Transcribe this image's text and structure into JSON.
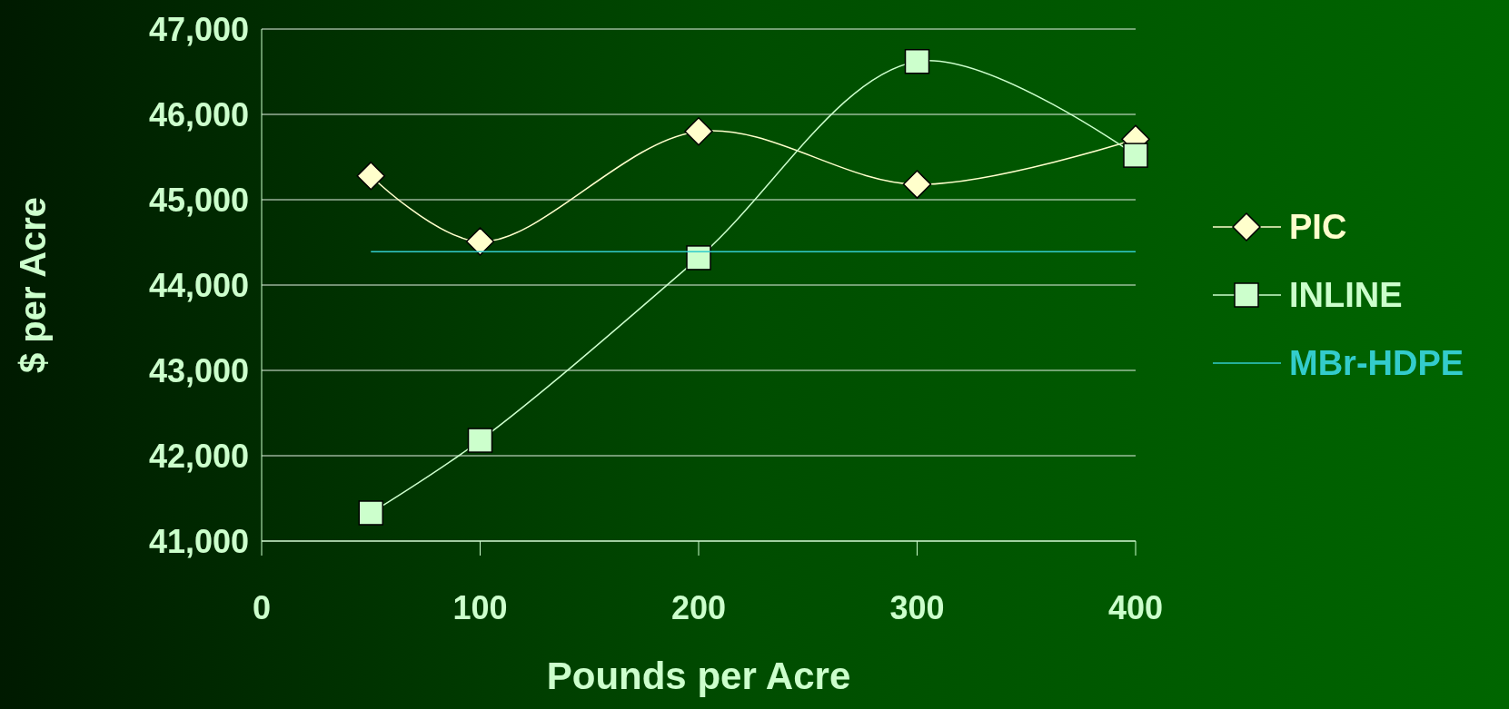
{
  "chart_data": {
    "type": "line",
    "xlabel": "Pounds per Acre",
    "ylabel": "$ per Acre",
    "x": [
      50,
      100,
      200,
      300,
      400
    ],
    "series": [
      {
        "name": "PIC",
        "color": "#ffffcc",
        "marker": "diamond",
        "values": [
          45280,
          44510,
          45800,
          45180,
          45710
        ]
      },
      {
        "name": "INLINE",
        "color": "#ccffcc",
        "marker": "square",
        "values": [
          41330,
          42180,
          44320,
          46620,
          45520
        ]
      },
      {
        "name": "MBr-HDPE",
        "color": "#33cccc",
        "marker": "none",
        "values": [
          44390,
          44390,
          44390,
          44390,
          44390
        ]
      }
    ],
    "xlim": [
      0,
      400
    ],
    "xticks": [
      0,
      100,
      200,
      300,
      400
    ],
    "ylim": [
      41000,
      47000
    ],
    "yticks": [
      {
        "value": 41000,
        "label": "41,000"
      },
      {
        "value": 42000,
        "label": "42,000"
      },
      {
        "value": 43000,
        "label": "43,000"
      },
      {
        "value": 44000,
        "label": "44,000"
      },
      {
        "value": 45000,
        "label": "45,000"
      },
      {
        "value": 46000,
        "label": "46,000"
      },
      {
        "value": 47000,
        "label": "47,000"
      }
    ],
    "grid": "y",
    "legend": "right"
  }
}
